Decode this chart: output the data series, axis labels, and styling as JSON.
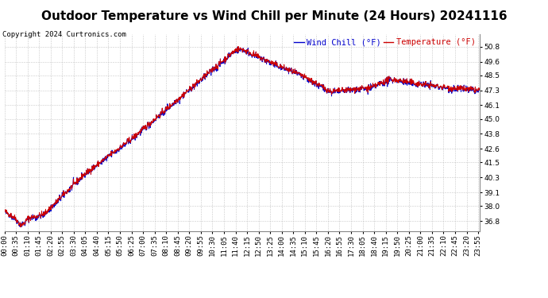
{
  "title": "Outdoor Temperature vs Wind Chill per Minute (24 Hours) 20241116",
  "copyright": "Copyright 2024 Curtronics.com",
  "legend_wind_chill": "Wind Chill (°F)",
  "legend_temperature": "Temperature (°F)",
  "ylim_min": 36.0,
  "ylim_max": 51.8,
  "yticks": [
    36.8,
    38.0,
    39.1,
    40.3,
    41.5,
    42.6,
    43.8,
    45.0,
    46.1,
    47.3,
    48.5,
    49.6,
    50.8
  ],
  "background_color": "#ffffff",
  "grid_color": "#bbbbbb",
  "line_color_temp": "#cc0000",
  "line_color_wind": "#0000cc",
  "title_fontsize": 11,
  "tick_fontsize": 6.5,
  "legend_fontsize": 7.5,
  "copyright_fontsize": 6.5
}
